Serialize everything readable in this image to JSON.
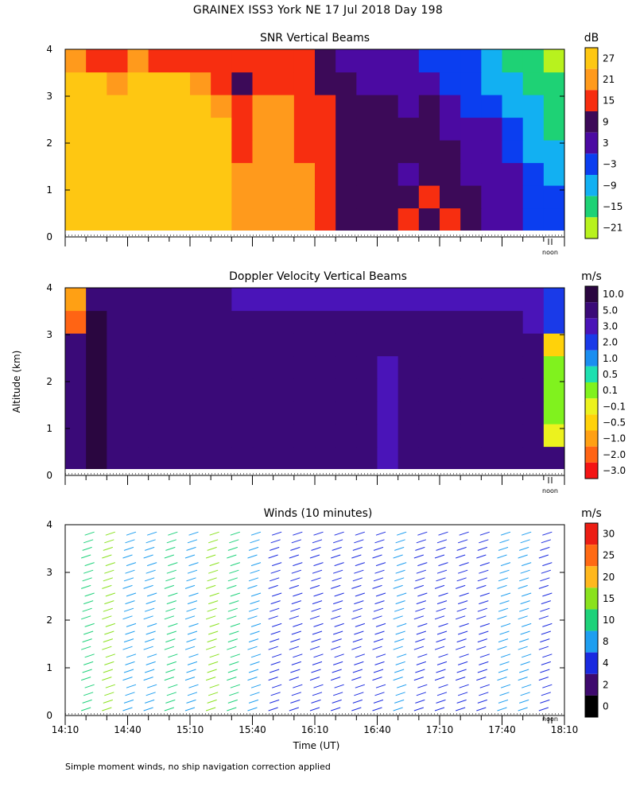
{
  "title": "GRAINEX ISS3 York NE  17 Jul 2018 Day 198",
  "footnote": "Simple moment winds, no ship navigation correction applied",
  "y_axis_label": "Altitude (km)",
  "x_axis_label": "Time (UT)",
  "noon_label": "noon",
  "chart_data": [
    {
      "type": "heatmap",
      "title": "SNR Vertical Beams",
      "colorbar_title": "dB",
      "colorbar_ticks": [
        "27",
        "21",
        "15",
        "9",
        "3",
        "−3",
        "−9",
        "−15",
        "−21"
      ],
      "colorbar_colors": [
        "#fec712",
        "#ff9a1c",
        "#f72e10",
        "#3c0a58",
        "#4b0aa2",
        "#0b3ef0",
        "#12b0f2",
        "#1ed275",
        "#b8f21e"
      ],
      "ylim": [
        0,
        4
      ],
      "yticks": [
        "0",
        "1",
        "2",
        "3",
        "4"
      ],
      "x_start": "14:10",
      "x_end": "18:10",
      "time_columns": [
        "14:10",
        "14:20",
        "14:30",
        "14:40",
        "14:50",
        "15:00",
        "15:10",
        "15:20",
        "15:30",
        "15:40",
        "15:50",
        "16:00",
        "16:10",
        "16:20",
        "16:30",
        "16:40",
        "16:50",
        "17:00",
        "17:10",
        "17:20",
        "17:30",
        "17:40",
        "17:50",
        "18:00"
      ],
      "altitude_rows": [
        0.25,
        0.75,
        1.25,
        1.75,
        2.25,
        2.75,
        3.25,
        3.75
      ],
      "values": [
        [
          24,
          27,
          24,
          27,
          27,
          24,
          27,
          24,
          21,
          21,
          18,
          18,
          15,
          6,
          6,
          6,
          15,
          6,
          15,
          6,
          3,
          3,
          -3,
          -6
        ],
        [
          24,
          27,
          24,
          27,
          27,
          24,
          27,
          24,
          21,
          21,
          18,
          18,
          15,
          6,
          6,
          6,
          6,
          15,
          6,
          6,
          3,
          3,
          -3,
          -6
        ],
        [
          24,
          27,
          24,
          27,
          27,
          24,
          27,
          24,
          21,
          18,
          18,
          18,
          15,
          6,
          6,
          6,
          3,
          6,
          6,
          3,
          3,
          3,
          -3,
          -9
        ],
        [
          24,
          27,
          24,
          27,
          27,
          24,
          27,
          24,
          15,
          18,
          18,
          15,
          15,
          6,
          6,
          6,
          6,
          6,
          6,
          3,
          3,
          -3,
          -9,
          -12
        ],
        [
          24,
          27,
          24,
          27,
          27,
          24,
          27,
          24,
          15,
          18,
          18,
          15,
          15,
          6,
          6,
          6,
          6,
          6,
          3,
          3,
          3,
          -6,
          -9,
          -15
        ],
        [
          27,
          24,
          24,
          27,
          27,
          24,
          27,
          21,
          15,
          18,
          18,
          15,
          15,
          6,
          6,
          6,
          3,
          6,
          3,
          -3,
          -6,
          -9,
          -12,
          -15
        ],
        [
          24,
          24,
          21,
          27,
          27,
          24,
          21,
          15,
          9,
          15,
          15,
          15,
          9,
          6,
          3,
          3,
          3,
          3,
          -3,
          -6,
          -9,
          -12,
          -15,
          -18
        ],
        [
          21,
          15,
          15,
          18,
          15,
          15,
          15,
          15,
          12,
          15,
          15,
          12,
          9,
          3,
          3,
          3,
          3,
          -3,
          -6,
          -3,
          -9,
          -15,
          -18,
          -21
        ]
      ]
    },
    {
      "type": "heatmap",
      "title": "Doppler Velocity Vertical Beams",
      "colorbar_title": "m/s",
      "colorbar_ticks": [
        "10.0",
        "5.0",
        "3.0",
        "2.0",
        "1.0",
        "0.5",
        "0.1",
        "−0.1",
        "−0.5",
        "−1.0",
        "−2.0",
        "−3.0"
      ],
      "colorbar_colors": [
        "#2a0640",
        "#3a0a78",
        "#4a14b8",
        "#1a3ae8",
        "#1a8ef0",
        "#1ee0b0",
        "#80f21e",
        "#ecf21e",
        "#ffd20a",
        "#ffa014",
        "#ff6414",
        "#f41414"
      ],
      "ylim": [
        0,
        4
      ],
      "yticks": [
        "0",
        "1",
        "2",
        "3",
        "4"
      ],
      "x_start": "14:10",
      "x_end": "18:10",
      "time_columns": [
        "14:10",
        "14:20",
        "14:30",
        "14:40",
        "14:50",
        "15:00",
        "15:10",
        "15:20",
        "15:30",
        "15:40",
        "15:50",
        "16:00",
        "16:10",
        "16:20",
        "16:30",
        "16:40",
        "16:50",
        "17:00",
        "17:10",
        "17:20",
        "17:30",
        "17:40",
        "17:50",
        "18:00"
      ],
      "altitude_rows": [
        0.25,
        0.75,
        1.25,
        1.75,
        2.25,
        2.75,
        3.25,
        3.75
      ],
      "values": [
        [
          4,
          10,
          4,
          4,
          4,
          4,
          4,
          4,
          4,
          4,
          4,
          4,
          4,
          4,
          4,
          3,
          4,
          4,
          4,
          4,
          4,
          4,
          4,
          4
        ],
        [
          4,
          10,
          4,
          4,
          4,
          4,
          4,
          4,
          4,
          4,
          4,
          4,
          4,
          4,
          4,
          3,
          4,
          4,
          4,
          4,
          4,
          4,
          4,
          -0.3
        ],
        [
          4,
          10,
          4,
          4,
          4,
          4,
          4,
          4,
          4,
          4,
          4,
          4,
          4,
          4,
          4,
          3,
          4,
          4,
          4,
          4,
          4,
          4,
          4,
          0.05
        ],
        [
          4,
          10,
          4,
          4,
          4,
          4,
          4,
          4,
          4,
          4,
          4,
          4,
          4,
          4,
          4,
          3,
          4,
          4,
          4,
          4,
          4,
          4,
          4,
          0.2
        ],
        [
          4,
          10,
          4,
          4,
          4,
          4,
          4,
          4,
          4,
          4,
          4,
          4,
          4,
          4,
          4,
          3,
          4,
          4,
          4,
          4,
          4,
          4,
          4,
          0.3
        ],
        [
          4,
          10,
          4,
          4,
          4,
          4,
          4,
          4,
          4,
          4,
          4,
          4,
          4,
          4,
          4,
          4,
          4,
          4,
          4,
          4,
          4,
          4,
          4,
          -0.7
        ],
        [
          -2,
          10,
          4,
          4,
          4,
          4,
          4,
          4,
          4,
          4,
          4,
          4,
          4,
          4,
          4,
          4,
          4,
          4,
          4,
          4,
          4,
          4,
          3,
          1.5
        ],
        [
          -1,
          4,
          4,
          4,
          4,
          4,
          4,
          4,
          3,
          3,
          3,
          3,
          3,
          3,
          3,
          3,
          3,
          3,
          3,
          3,
          3,
          3,
          2.5,
          2
        ]
      ]
    },
    {
      "type": "scatter",
      "title": "Winds (10 minutes)",
      "colorbar_title": "m/s",
      "colorbar_ticks": [
        "30",
        "25",
        "20",
        "15",
        "10",
        "8",
        "4",
        "2",
        "0"
      ],
      "colorbar_colors": [
        "#ec1e14",
        "#ff6a14",
        "#ffb81e",
        "#8ae21e",
        "#1ed27a",
        "#1e9ef0",
        "#1a2ae0",
        "#3e0a6e",
        "#000000"
      ],
      "ylim": [
        0,
        4
      ],
      "yticks": [
        "0",
        "1",
        "2",
        "3",
        "4"
      ],
      "xticks": [
        "14:10",
        "14:40",
        "15:10",
        "15:40",
        "16:10",
        "16:40",
        "17:10",
        "17:40",
        "18:10"
      ],
      "profile_times": [
        "14:20",
        "14:30",
        "14:40",
        "14:50",
        "15:00",
        "15:10",
        "15:20",
        "15:30",
        "15:40",
        "15:50",
        "16:00",
        "16:10",
        "16:20",
        "16:30",
        "16:40",
        "16:50",
        "17:00",
        "17:10",
        "17:20",
        "17:30",
        "17:40",
        "17:50",
        "18:00"
      ],
      "profile_speeds": [
        12,
        15,
        6,
        8,
        10,
        6,
        14,
        10,
        6,
        5,
        4,
        3,
        3,
        4,
        5,
        6,
        5,
        4,
        4,
        5,
        6,
        6,
        5
      ]
    }
  ]
}
